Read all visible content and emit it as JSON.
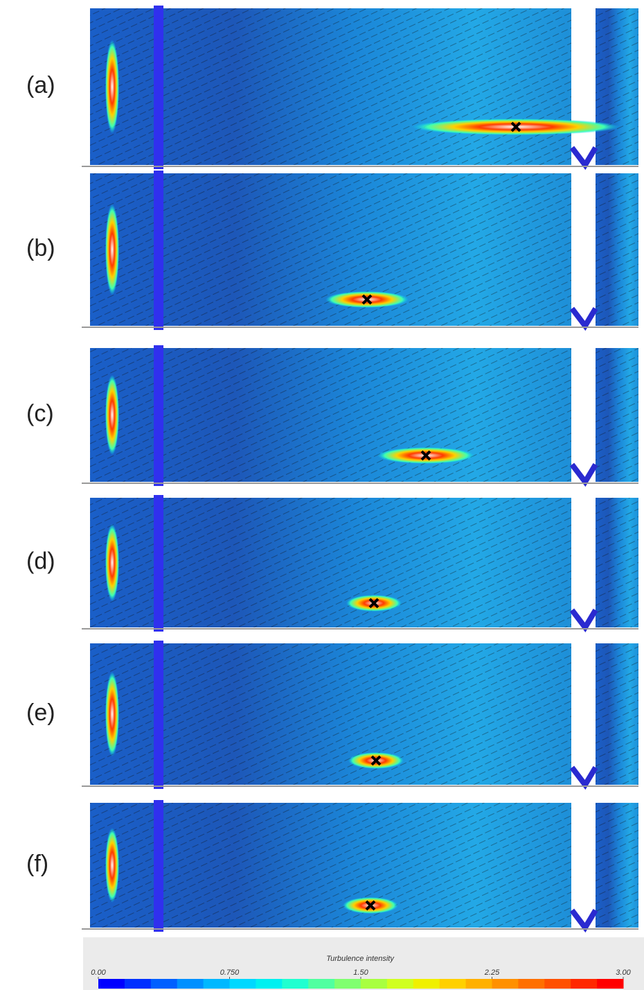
{
  "chart_data": {
    "type": "contour",
    "panels": [
      "(a)",
      "(b)",
      "(c)",
      "(d)",
      "(e)",
      "(f)"
    ],
    "colorbar_title": "Turbulence intensity",
    "xlim": [
      0,
      3
    ],
    "xticks": [
      {
        "value": 0,
        "label": "0.00"
      },
      {
        "value": 0.75,
        "label": "0.750"
      },
      {
        "value": 1.5,
        "label": "1.50"
      },
      {
        "value": 2.25,
        "label": "2.25"
      },
      {
        "value": 3,
        "label": "3.00"
      }
    ],
    "colormap": [
      "#0000ff",
      "#0030ff",
      "#0060ff",
      "#0090ff",
      "#00b8ff",
      "#00d8ff",
      "#00f0f0",
      "#20ffd0",
      "#50ffa0",
      "#80ff70",
      "#a8ff40",
      "#d0ff20",
      "#f0f000",
      "#ffd000",
      "#ffb000",
      "#ff9000",
      "#ff7000",
      "#ff5000",
      "#ff2800",
      "#ff0000"
    ]
  }
}
